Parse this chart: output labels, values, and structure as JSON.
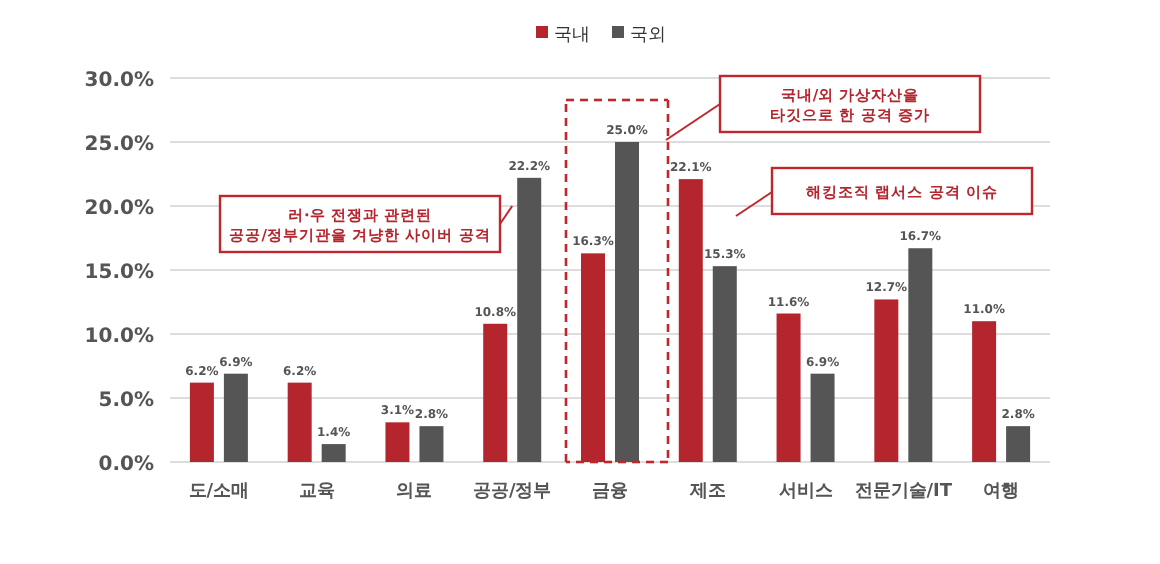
{
  "chart_data": {
    "type": "bar",
    "categories": [
      "도/소매",
      "교육",
      "의료",
      "공공/정부",
      "금융",
      "제조",
      "서비스",
      "전문기술/IT",
      "여행"
    ],
    "series": [
      {
        "name": "국내",
        "color": "#b5252d",
        "values": [
          6.2,
          6.2,
          3.1,
          10.8,
          16.3,
          22.1,
          11.6,
          12.7,
          11.0
        ],
        "value_labels": [
          "6.2%",
          "6.2%",
          "3.1%",
          "10.8%",
          "16.3%",
          "22.1%",
          "11.6%",
          "12.7%",
          "11.0%"
        ]
      },
      {
        "name": "국외",
        "color": "#555555",
        "values": [
          6.9,
          1.4,
          2.8,
          22.2,
          25.0,
          15.3,
          6.9,
          16.7,
          2.8
        ],
        "value_labels": [
          "6.9%",
          "1.4%",
          "2.8%",
          "22.2%",
          "25.0%",
          "15.3%",
          "6.9%",
          "16.7%",
          "2.8%"
        ]
      }
    ],
    "ylim": [
      0,
      30
    ],
    "yticks": [
      {
        "value": 0,
        "label": "0.0%"
      },
      {
        "value": 5,
        "label": "5.0%"
      },
      {
        "value": 10,
        "label": "10.0%"
      },
      {
        "value": 15,
        "label": "15.0%"
      },
      {
        "value": 20,
        "label": "20.0%"
      },
      {
        "value": 25,
        "label": "25.0%"
      },
      {
        "value": 30,
        "label": "30.0%"
      }
    ],
    "grid": "y",
    "legend": "top",
    "annotations": [
      {
        "text": "러·우 전쟁과 관련된\n공공/정부기관을 겨냥한 사이버 공격",
        "x": "공공/정부",
        "y": 20
      },
      "국내/외 가상자산을\n타깃으로 한 공격 증가",
      "해킹조직 랩서스 공격 이슈"
    ]
  }
}
